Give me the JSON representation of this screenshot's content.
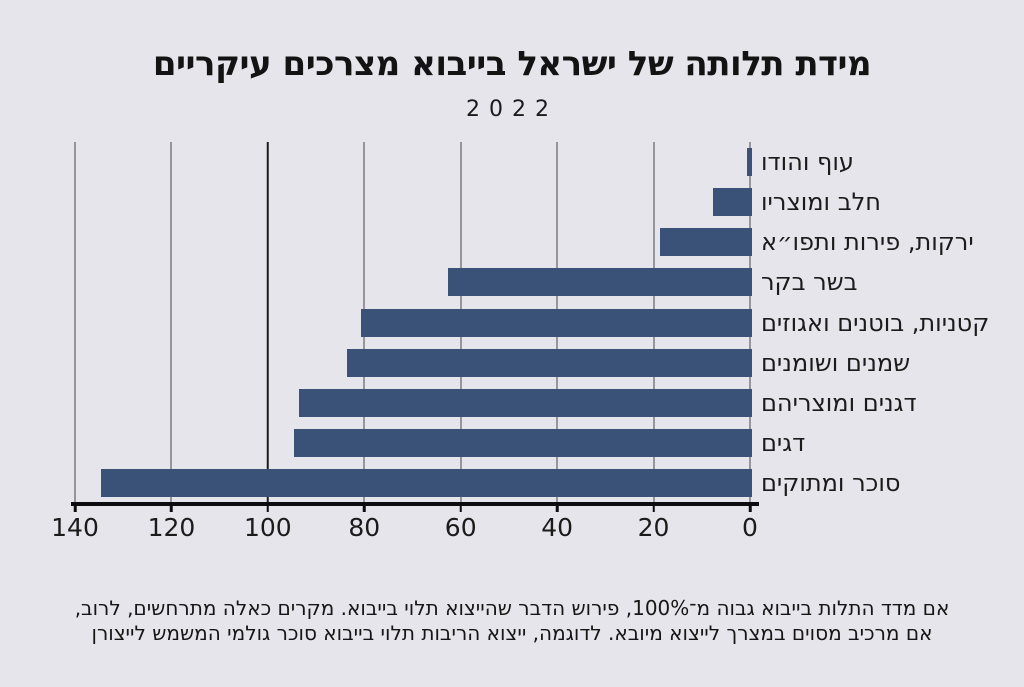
{
  "title": "מידת תלותה של ישראל בייבוא מצרכים עיקריים",
  "subtitle": "2022",
  "footnote": {
    "line1": "אם מדד התלות בייבוא גבוה מ־100%, פירוש הדבר שהייצוא תלוי בייבוא. מקרים כאלה מתרחשים, לרוב,",
    "line2": "אם מרכיב מסוים במצרך לייצוא מיובא. לדוגמה, ייצוא הריבות תלוי בייבוא סוכר גולמי המשמש לייצורן"
  },
  "chart_data": {
    "type": "bar",
    "orientation": "horizontal",
    "direction": "rtl",
    "title": "מידת תלותה של ישראל בייבוא מצרכים עיקריים",
    "subtitle": "2022",
    "categories": [
      "עוף והודו",
      "חלב ומוצריו",
      "ירקות, פירות ותפו״א",
      "בשר בקר",
      "קטניות, בוטנים ואגוזים",
      "שמנים ושומנים",
      "דגנים ומוצריהם",
      "דגים",
      "סוכר ומתוקים"
    ],
    "values": [
      1,
      8,
      19,
      63,
      81,
      84,
      94,
      95,
      135
    ],
    "unit": "%",
    "xlabel": "",
    "ylabel": "",
    "xlim": [
      0,
      140
    ],
    "x_ticks": [
      140,
      120,
      100,
      80,
      60,
      40,
      20,
      0
    ],
    "reference_line": 100,
    "grid": true,
    "legend": false
  },
  "colors": {
    "background": "#E6E5EB",
    "bar": "#3A5278",
    "gridline": "#96959C",
    "reference_line": "#1B1B1D",
    "axis": "#0D0D0F",
    "text": "#141414"
  }
}
